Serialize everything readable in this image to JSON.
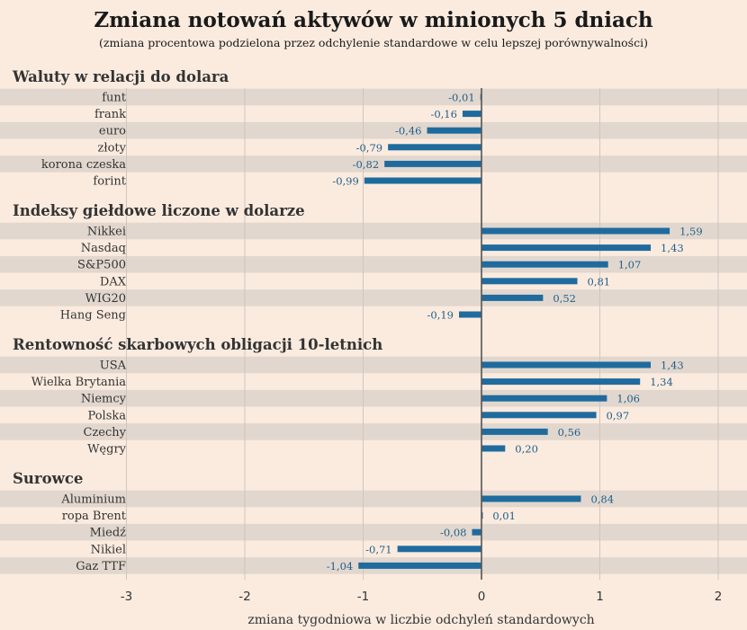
{
  "title": "Zmiana notowań aktywów w minionych 5 dniach",
  "subtitle": "(zmiana procentowa podzielona przez odchylenie standardowe w celu lepszej porównywalności)",
  "colors": {
    "background": "#fbebdf",
    "stripe": "#e1d7ce",
    "bar": "#1f6b9e",
    "value_text": "#1f5f8b",
    "gridline": "#cfc6bd",
    "zero_line": "#555555"
  },
  "chart_data": {
    "type": "bar",
    "orientation": "horizontal",
    "xlabel": "zmiana tygodniowa w liczbie odchyleń standardowych",
    "xlim": [
      -3,
      2
    ],
    "xticks": [
      -3,
      -2,
      -1,
      0,
      1,
      2
    ],
    "xtick_labels": [
      "-3",
      "-2",
      "-1",
      "0",
      "1",
      "2"
    ],
    "grid": true,
    "groups": [
      {
        "title": "Waluty w relacji do dolara",
        "categories": [
          "funt",
          "frank",
          "euro",
          "złoty",
          "korona czeska",
          "forint"
        ],
        "values": [
          -0.01,
          -0.16,
          -0.46,
          -0.79,
          -0.82,
          -0.99
        ],
        "value_labels": [
          "-0,01",
          "-0,16",
          "-0,46",
          "-0,79",
          "-0,82",
          "-0,99"
        ]
      },
      {
        "title": "Indeksy giełdowe liczone w dolarze",
        "categories": [
          "Nikkei",
          "Nasdaq",
          "S&P500",
          "DAX",
          "WIG20",
          "Hang Seng"
        ],
        "values": [
          1.59,
          1.43,
          1.07,
          0.81,
          0.52,
          -0.19
        ],
        "value_labels": [
          "1,59",
          "1,43",
          "1,07",
          "0,81",
          "0,52",
          "-0,19"
        ]
      },
      {
        "title": "Rentowność skarbowych obligacji 10-letnich",
        "categories": [
          "USA",
          "Wielka Brytania",
          "Niemcy",
          "Polska",
          "Czechy",
          "Węgry"
        ],
        "values": [
          1.43,
          1.34,
          1.06,
          0.97,
          0.56,
          0.2
        ],
        "value_labels": [
          "1,43",
          "1,34",
          "1,06",
          "0,97",
          "0,56",
          "0,20"
        ]
      },
      {
        "title": "Surowce",
        "categories": [
          "Aluminium",
          "ropa Brent",
          "Miedź",
          "Nikiel",
          "Gaz TTF"
        ],
        "values": [
          0.84,
          0.01,
          -0.08,
          -0.71,
          -1.04
        ],
        "value_labels": [
          "0,84",
          "0,01",
          "-0,08",
          "-0,71",
          "-1,04"
        ]
      }
    ]
  }
}
